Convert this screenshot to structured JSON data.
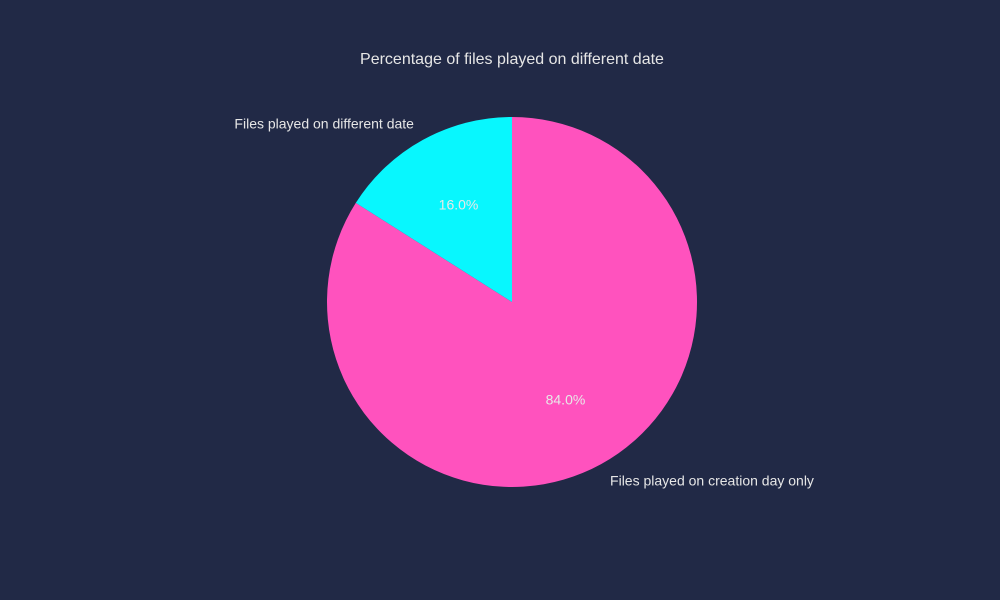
{
  "chart_data": {
    "type": "pie",
    "title": "Percentage of files played on different date",
    "slices": [
      {
        "label": "Files played on creation day only",
        "value": 84.0,
        "pct_label": "84.0%",
        "color": "#ff52be"
      },
      {
        "label": "Files played on different date",
        "value": 16.0,
        "pct_label": "16.0%",
        "color": "#08f7fe"
      }
    ],
    "start_angle_deg": 90,
    "direction": "clockwise",
    "legend": "none"
  },
  "colors": {
    "background": "#212946",
    "text": "#e6e6e6"
  }
}
